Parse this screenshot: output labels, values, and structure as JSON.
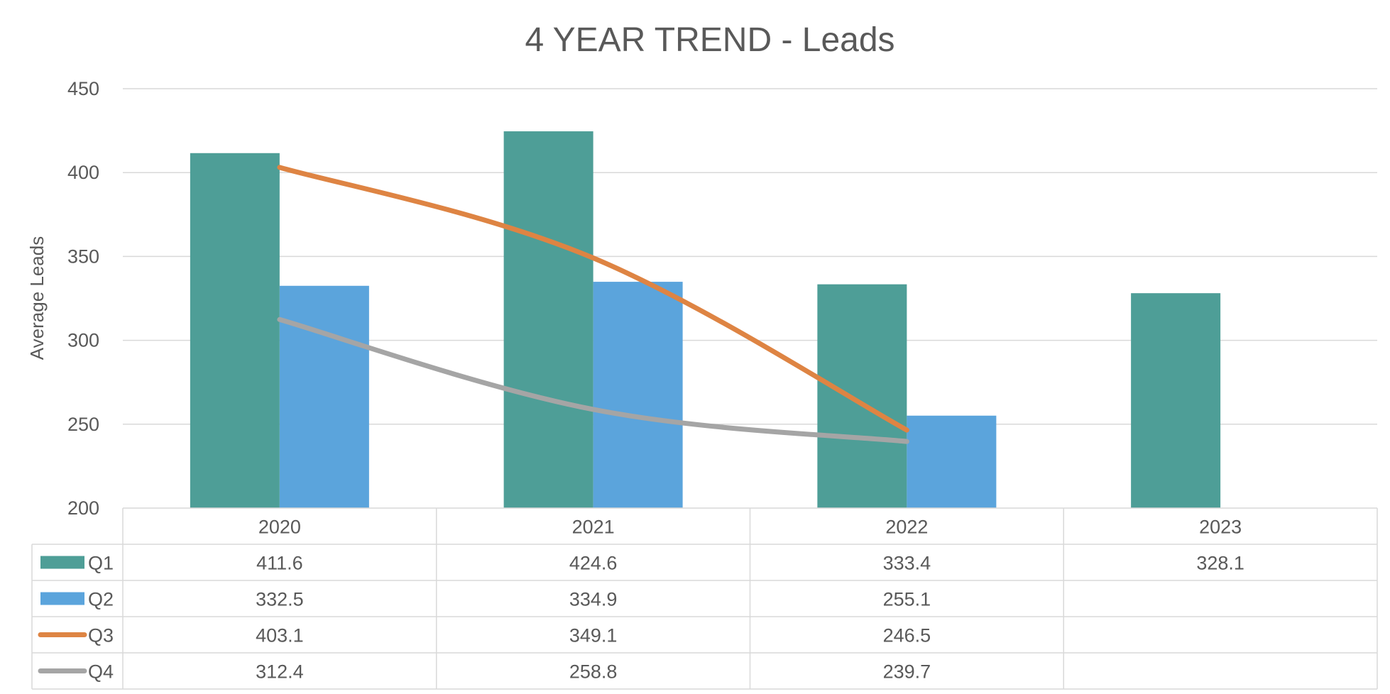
{
  "chart_data": {
    "type": "bar",
    "title": "4 YEAR TREND - Leads",
    "ylabel": "Average Leads",
    "xlabel": "",
    "categories": [
      "2020",
      "2021",
      "2022",
      "2023"
    ],
    "ylim": [
      200,
      450
    ],
    "y_ticks": [
      200,
      250,
      300,
      350,
      400,
      450
    ],
    "grid": true,
    "legend": "data-table",
    "series": [
      {
        "name": "Q1",
        "kind": "bar",
        "color": "#4E9E97",
        "values": [
          411.6,
          424.6,
          333.4,
          328.1
        ]
      },
      {
        "name": "Q2",
        "kind": "bar",
        "color": "#5BA4DC",
        "values": [
          332.5,
          334.9,
          255.1,
          null
        ]
      },
      {
        "name": "Q3",
        "kind": "line",
        "color": "#DE8443",
        "values": [
          403.1,
          349.1,
          246.5,
          null
        ]
      },
      {
        "name": "Q4",
        "kind": "line",
        "color": "#A5A5A5",
        "values": [
          312.4,
          258.8,
          239.7,
          null
        ]
      }
    ],
    "table": {
      "rows": [
        [
          "411.6",
          "424.6",
          "333.4",
          "328.1"
        ],
        [
          "332.5",
          "334.9",
          "255.1",
          ""
        ],
        [
          "403.1",
          "349.1",
          "246.5",
          ""
        ],
        [
          "312.4",
          "258.8",
          "239.7",
          ""
        ]
      ]
    }
  }
}
